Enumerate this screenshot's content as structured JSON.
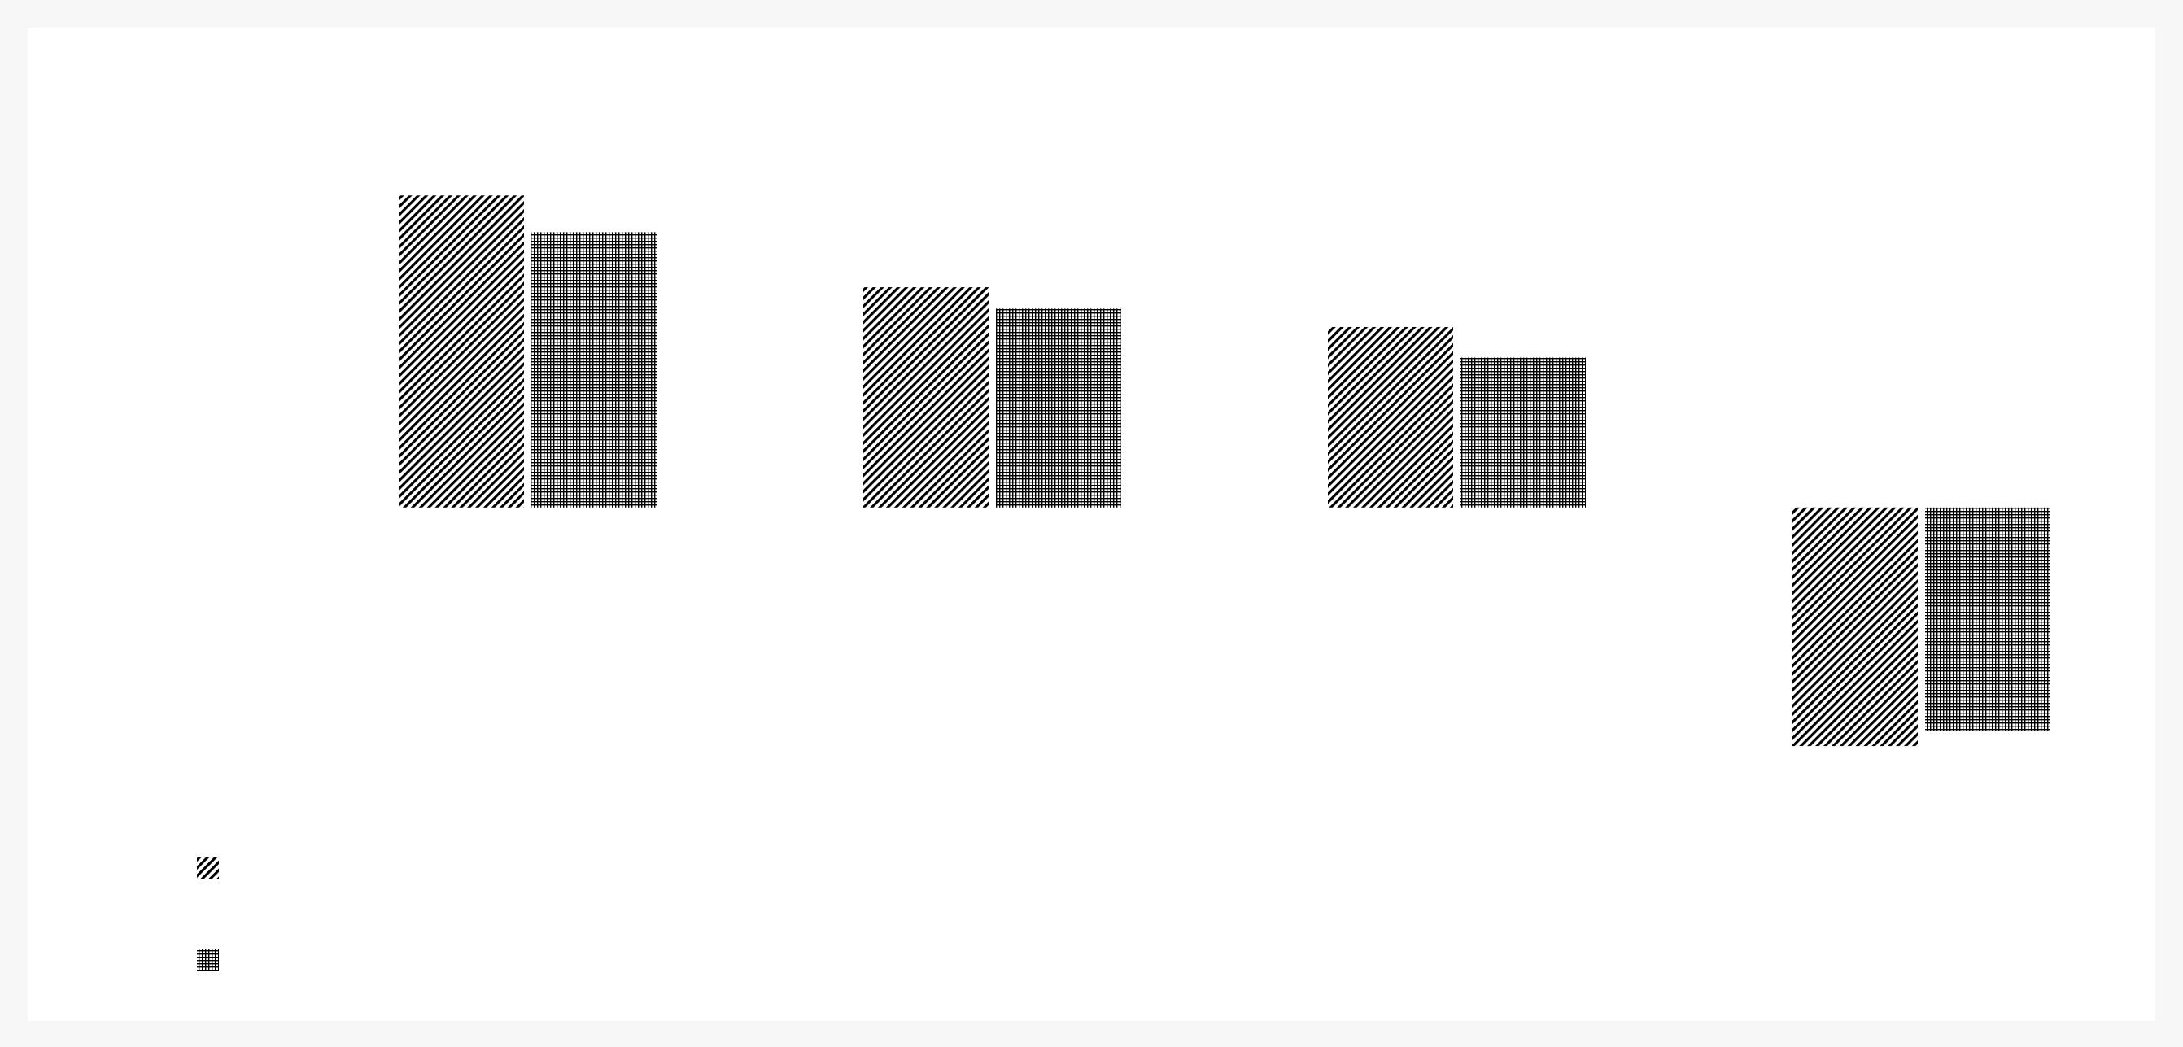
{
  "chart_data": {
    "type": "bar",
    "categories": [
      "",
      "",
      "",
      ""
    ],
    "series": [
      {
        "pattern": "diagonal-hatch",
        "color": "#000000",
        "values": [
          102,
          72,
          59,
          -78
        ]
      },
      {
        "pattern": "grid-hatch",
        "color": "#000000",
        "values": [
          90,
          65,
          49,
          -73
        ]
      }
    ],
    "title": "",
    "xlabel": "",
    "ylabel": "",
    "ylim": [
      -120,
      130
    ],
    "grid": false,
    "legend_position": "bottom-left",
    "background": "#ffffff",
    "frame_background": "#f7f7f7"
  }
}
